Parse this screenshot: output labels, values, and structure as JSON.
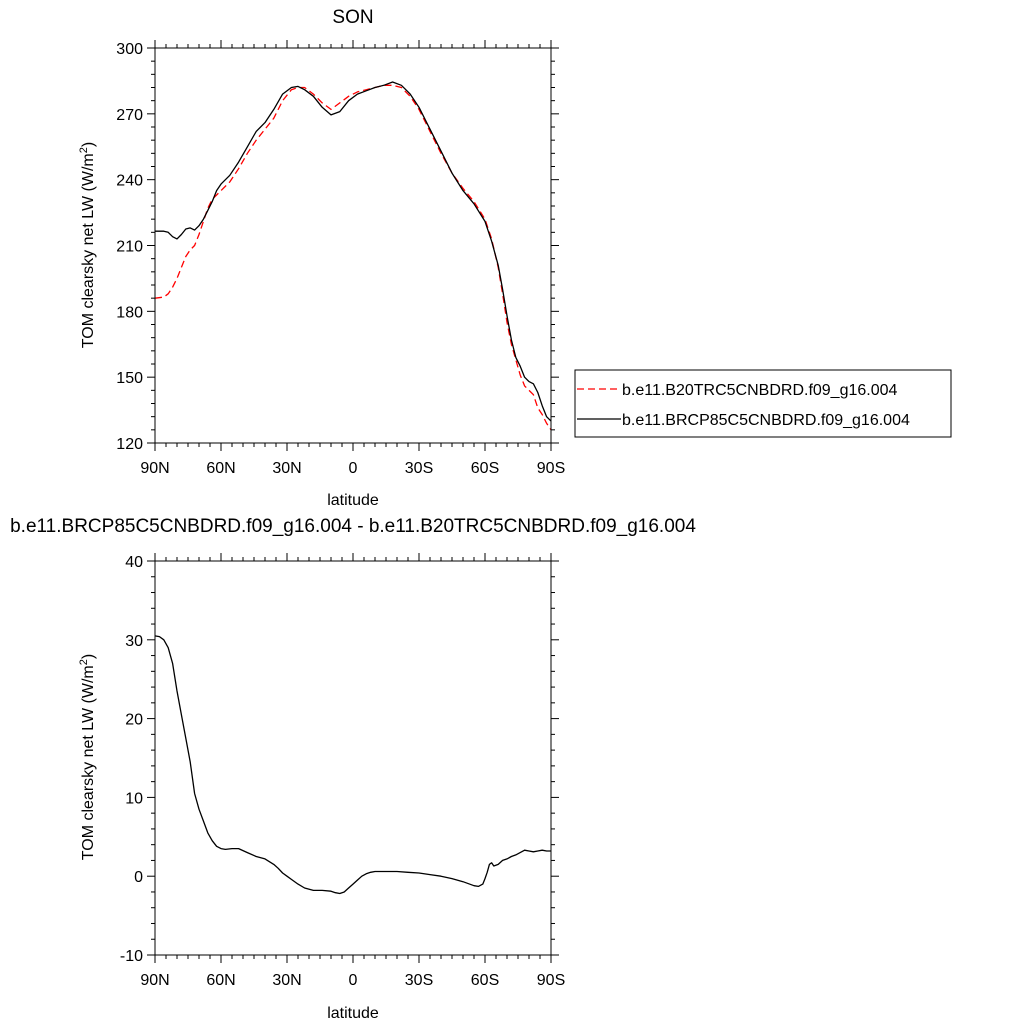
{
  "chart_data": [
    {
      "type": "line",
      "title": "SON",
      "xlabel": "latitude",
      "ylabel": "TOM clearsky net LW (W/m",
      "ylabel_sup": "2",
      "ylabel_close": ")",
      "xlim": [
        90,
        -90
      ],
      "ylim": [
        120,
        300
      ],
      "x_ticks": [
        {
          "value": 90,
          "label": "90N"
        },
        {
          "value": 60,
          "label": "60N"
        },
        {
          "value": 30,
          "label": "30N"
        },
        {
          "value": 0,
          "label": "0"
        },
        {
          "value": -30,
          "label": "30S"
        },
        {
          "value": -60,
          "label": "60S"
        },
        {
          "value": -90,
          "label": "90S"
        }
      ],
      "y_ticks": [
        {
          "value": 120,
          "label": "120"
        },
        {
          "value": 150,
          "label": "150"
        },
        {
          "value": 180,
          "label": "180"
        },
        {
          "value": 210,
          "label": "210"
        },
        {
          "value": 240,
          "label": "240"
        },
        {
          "value": 270,
          "label": "270"
        },
        {
          "value": 300,
          "label": "300"
        }
      ],
      "legend_position": "right",
      "series": [
        {
          "name": "b.e11.B20TRC5CNBDRD.f09_g16.004",
          "color": "#ff0000",
          "dash": "dashed",
          "x": [
            90,
            86,
            84,
            82,
            80,
            78,
            76,
            74,
            72,
            70,
            68,
            66,
            64,
            62,
            60,
            56,
            52,
            48,
            44,
            40,
            36,
            32,
            28,
            25,
            22,
            18,
            14,
            10,
            6,
            2,
            -2,
            -6,
            -10,
            -14,
            -18,
            -22,
            -26,
            -30,
            -35,
            -40,
            -45,
            -50,
            -55,
            -60,
            -63,
            -66,
            -68,
            -70,
            -72,
            -74,
            -76,
            -78,
            -80,
            -82,
            -84,
            -86,
            -88,
            -90
          ],
          "y": [
            186,
            186.5,
            188,
            191,
            195,
            200,
            205,
            208,
            210,
            215,
            221,
            227,
            231,
            233,
            235,
            239,
            245,
            252,
            258,
            263,
            268,
            276,
            281,
            282,
            282,
            279,
            275,
            272,
            275,
            278,
            280,
            281,
            282,
            283,
            283,
            282,
            278,
            272,
            262,
            252,
            243,
            236,
            230,
            222,
            213,
            200,
            188,
            175,
            165,
            158,
            151,
            146,
            144,
            142,
            136,
            133,
            129,
            126
          ]
        },
        {
          "name": "b.e11.BRCP85C5CNBDRD.f09_g16.004",
          "color": "#000000",
          "dash": "solid",
          "x": [
            90,
            86,
            84,
            82,
            80,
            78,
            76,
            74,
            72,
            70,
            68,
            66,
            64,
            62,
            60,
            56,
            52,
            48,
            44,
            40,
            36,
            32,
            28,
            25,
            22,
            18,
            14,
            10,
            6,
            2,
            -2,
            -6,
            -10,
            -14,
            -18,
            -22,
            -26,
            -30,
            -35,
            -40,
            -45,
            -50,
            -55,
            -60,
            -63,
            -66,
            -68,
            -70,
            -72,
            -74,
            -76,
            -78,
            -80,
            -82,
            -84,
            -86,
            -88,
            -90
          ],
          "y": [
            216.5,
            216.5,
            216,
            214,
            213,
            215,
            217.5,
            218,
            217,
            219,
            222,
            226,
            230,
            235,
            238,
            242,
            248,
            255,
            262,
            266,
            272,
            279,
            282,
            282.5,
            281,
            278,
            273,
            269.5,
            271,
            276,
            279,
            280.5,
            282,
            283,
            284.5,
            283,
            279,
            273,
            263,
            253,
            243,
            235,
            229,
            221,
            212,
            201,
            190,
            178,
            167,
            159,
            155,
            150,
            148,
            147,
            143,
            137,
            132,
            130
          ]
        }
      ]
    },
    {
      "type": "line",
      "title": "b.e11.BRCP85C5CNBDRD.f09_g16.004 - b.e11.B20TRC5CNBDRD.f09_g16.004",
      "xlabel": "latitude",
      "ylabel": "TOM clearsky net LW (W/m",
      "ylabel_sup": "2",
      "ylabel_close": ")",
      "xlim": [
        90,
        -90
      ],
      "ylim": [
        -10,
        40
      ],
      "x_ticks": [
        {
          "value": 90,
          "label": "90N"
        },
        {
          "value": 60,
          "label": "60N"
        },
        {
          "value": 30,
          "label": "30N"
        },
        {
          "value": 0,
          "label": "0"
        },
        {
          "value": -30,
          "label": "30S"
        },
        {
          "value": -60,
          "label": "60S"
        },
        {
          "value": -90,
          "label": "90S"
        }
      ],
      "y_ticks": [
        {
          "value": -10,
          "label": "-10"
        },
        {
          "value": 0,
          "label": "0"
        },
        {
          "value": 10,
          "label": "10"
        },
        {
          "value": 20,
          "label": "20"
        },
        {
          "value": 30,
          "label": "30"
        },
        {
          "value": 40,
          "label": "40"
        }
      ],
      "series": [
        {
          "color": "#000000",
          "dash": "solid",
          "x": [
            90,
            88,
            86,
            84,
            82,
            80,
            78,
            76,
            74,
            72,
            70,
            68,
            66,
            64,
            62,
            60,
            58,
            55,
            52,
            48,
            44,
            40,
            36,
            34,
            32,
            30,
            28,
            25,
            22,
            18,
            14,
            10,
            8,
            6,
            4,
            2,
            0,
            -2,
            -4,
            -6,
            -8,
            -10,
            -12,
            -15,
            -20,
            -25,
            -30,
            -35,
            -40,
            -45,
            -50,
            -55,
            -57,
            -59,
            -60,
            -61,
            -62,
            -63,
            -64,
            -66,
            -68,
            -70,
            -72,
            -74,
            -76,
            -78,
            -80,
            -82,
            -84,
            -86,
            -88,
            -90
          ],
          "y": [
            30.5,
            30.4,
            30,
            29,
            27,
            23.5,
            20.5,
            17.5,
            14.5,
            10.5,
            8.5,
            7,
            5.5,
            4.5,
            3.8,
            3.5,
            3.4,
            3.5,
            3.5,
            3.0,
            2.5,
            2.2,
            1.5,
            1.0,
            0.4,
            0.0,
            -0.4,
            -1.0,
            -1.5,
            -1.8,
            -1.8,
            -1.9,
            -2.1,
            -2.2,
            -2.0,
            -1.5,
            -1.0,
            -0.5,
            0.0,
            0.3,
            0.5,
            0.6,
            0.6,
            0.6,
            0.6,
            0.5,
            0.4,
            0.2,
            0.0,
            -0.3,
            -0.7,
            -1.2,
            -1.3,
            -1.0,
            -0.3,
            0.5,
            1.5,
            1.7,
            1.3,
            1.5,
            2.0,
            2.2,
            2.5,
            2.7,
            3.0,
            3.3,
            3.2,
            3.1,
            3.2,
            3.3,
            3.2,
            3.2
          ]
        }
      ]
    }
  ]
}
